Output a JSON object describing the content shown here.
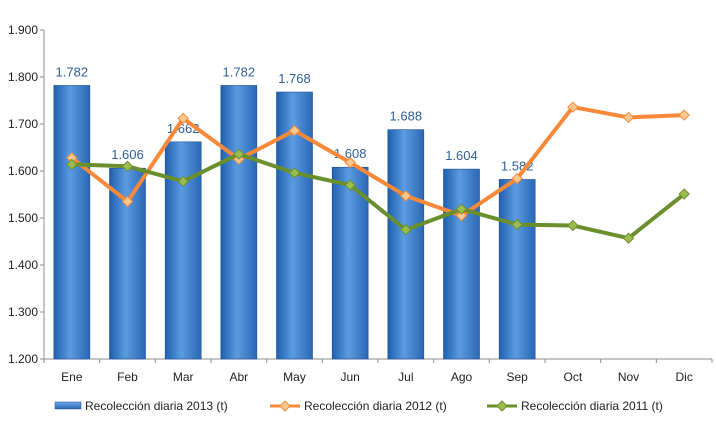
{
  "chart_data": {
    "type": "bar",
    "categories": [
      "Ene",
      "Feb",
      "Mar",
      "Abr",
      "May",
      "Jun",
      "Jul",
      "Ago",
      "Sep",
      "Oct",
      "Nov",
      "Dic"
    ],
    "ylim": [
      1200,
      1900
    ],
    "yticks": [
      1200,
      1300,
      1400,
      1500,
      1600,
      1700,
      1800,
      1900
    ],
    "ytick_labels": [
      "1.200",
      "1.300",
      "1.400",
      "1.500",
      "1.600",
      "1.700",
      "1.800",
      "1.900"
    ],
    "grid": false,
    "legend_position": "bottom",
    "series": [
      {
        "name": "Recolección diaria  2013 (t)",
        "type": "bar",
        "color": "#3a7bc8",
        "values": [
          1782,
          1606,
          1662,
          1782,
          1768,
          1608,
          1688,
          1604,
          1582,
          null,
          null,
          null
        ],
        "labels": [
          "1.782",
          "1.606",
          "1.662",
          "1.782",
          "1.768",
          "1.608",
          "1.688",
          "1.604",
          "1.582",
          null,
          null,
          null
        ]
      },
      {
        "name": "Recolección diaria  2012 (t)",
        "type": "line",
        "color": "#f7893b",
        "values": [
          1628,
          1535,
          1712,
          1625,
          1686,
          1618,
          1547,
          1505,
          1584,
          1736,
          1714,
          1719
        ]
      },
      {
        "name": "Recolección diaria  2011 (t)",
        "type": "line",
        "color": "#6a8f2c",
        "values": [
          1614,
          1610,
          1578,
          1636,
          1596,
          1570,
          1475,
          1519,
          1486,
          1484,
          1457,
          1551
        ]
      }
    ]
  }
}
